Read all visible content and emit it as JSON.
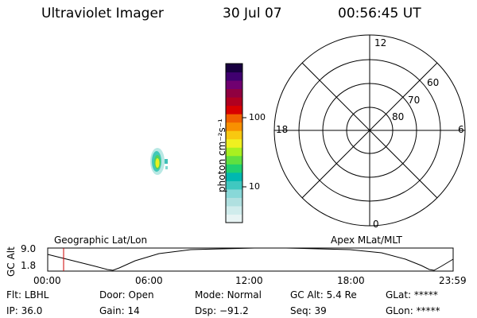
{
  "header": {
    "instrument": "Ultraviolet Imager",
    "date": "30 Jul 07",
    "time": "00:56:45 UT"
  },
  "colorbar": {
    "label": "photon cm⁻²s⁻¹",
    "ticks": [
      "100",
      "10"
    ],
    "colors": [
      "#e8f4f4",
      "#d0ecec",
      "#b0e0e0",
      "#88d8d8",
      "#40c8c0",
      "#00b8b0",
      "#20d070",
      "#60e040",
      "#a8f020",
      "#f0f020",
      "#f8c810",
      "#f89000",
      "#f06000",
      "#d80000",
      "#b00020",
      "#900040",
      "#700070",
      "#400070",
      "#180040"
    ]
  },
  "polar_plot": {
    "mlt_labels": [
      "12",
      "18",
      "6",
      "0"
    ],
    "lat_labels": [
      "60",
      "70",
      "80"
    ]
  },
  "track_panel": {
    "left_title": "Geographic Lat/Lon",
    "right_title": "Apex MLat/MLT",
    "y_axis_label": "GC Alt",
    "y_ticks": [
      "9.0",
      "1.8"
    ],
    "x_ticks": [
      "00:00",
      "06:00",
      "12:00",
      "18:00",
      "23:59"
    ],
    "marker_color": "#cc0000"
  },
  "status": {
    "row1": [
      {
        "label": "Flt:",
        "value": "LBHL"
      },
      {
        "label": "Door:",
        "value": "Open"
      },
      {
        "label": "Mode:",
        "value": "Normal"
      },
      {
        "label": "GC Alt:",
        "value": "5.4 Re"
      },
      {
        "label": "GLat:",
        "value": "*****"
      }
    ],
    "row2": [
      {
        "label": "IP:",
        "value": "36.0"
      },
      {
        "label": "Gain:",
        "value": "14"
      },
      {
        "label": "Dsp:",
        "value": "−91.2"
      },
      {
        "label": "Seq:",
        "value": "39"
      },
      {
        "label": "GLon:",
        "value": "*****"
      }
    ]
  }
}
